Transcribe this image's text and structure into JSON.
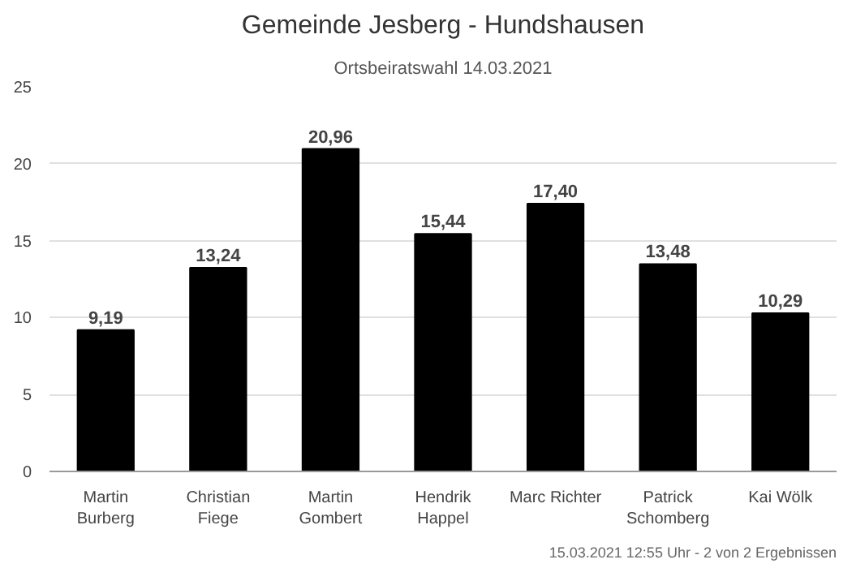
{
  "chart_data": {
    "type": "bar",
    "title": "Gemeinde Jesberg - Hundshausen",
    "subtitle": "Ortsbeiratswahl 14.03.2021",
    "categories": [
      "Martin\nBurberg",
      "Christian\nFiege",
      "Martin\nGombert",
      "Hendrik\nHappel",
      "Marc Richter",
      "Patrick\nSchomberg",
      "Kai Wölk"
    ],
    "values": [
      9.19,
      13.24,
      20.96,
      15.44,
      17.4,
      13.48,
      10.29
    ],
    "value_labels": [
      "9,19",
      "13,24",
      "20,96",
      "15,44",
      "17,40",
      "13,48",
      "10,29"
    ],
    "color": "#000000",
    "ylim": [
      0,
      25
    ],
    "yticks": [
      0,
      5,
      10,
      15,
      20,
      25
    ],
    "grid": "y",
    "annotations": [
      "15.03.2021 12:55 Uhr - 2 von 2 Ergebnissen"
    ]
  }
}
